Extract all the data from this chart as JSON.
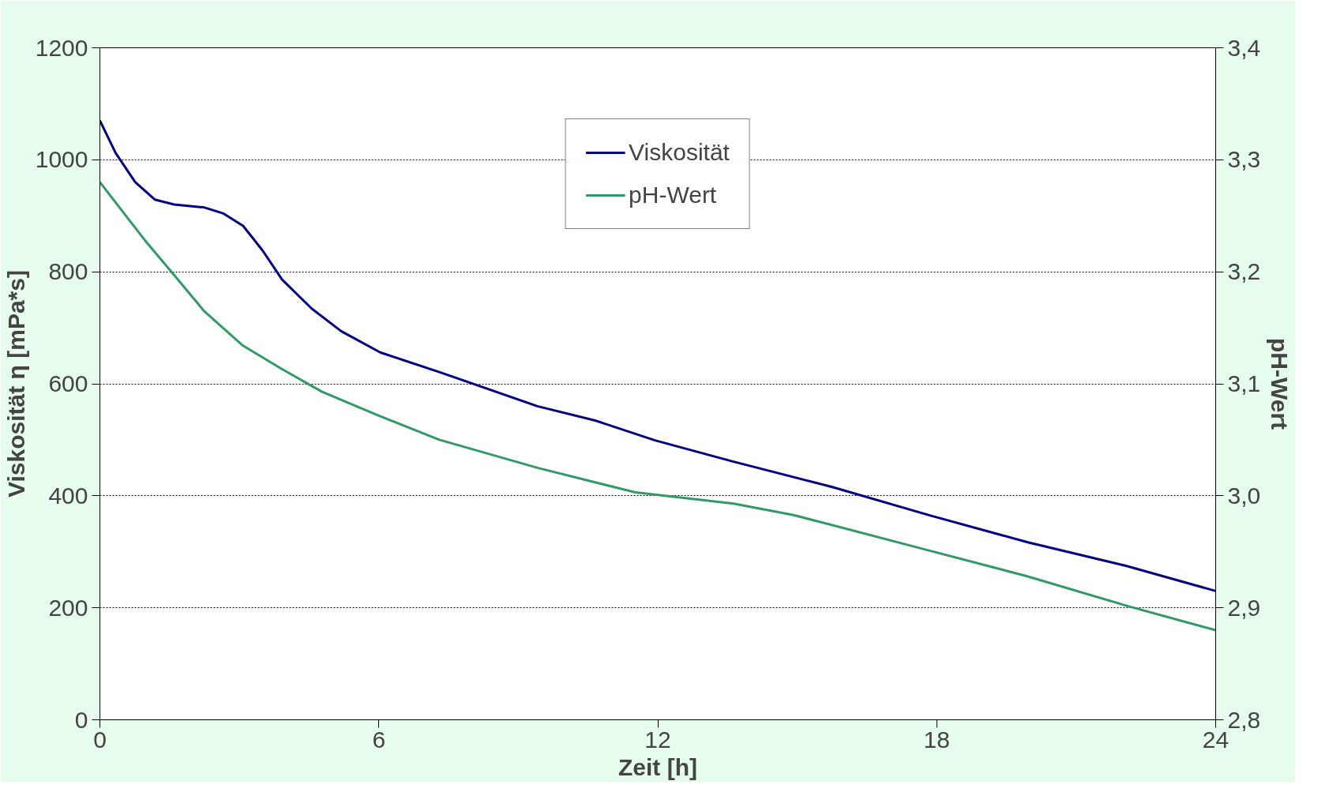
{
  "chart_data": {
    "type": "line",
    "xlabel": "Zeit [h]",
    "ylabel": "Viskosität η [mPa*s]",
    "y2label": "pH-Wert",
    "xlim": [
      0,
      24
    ],
    "xticks": [
      0,
      6,
      12,
      18,
      24
    ],
    "ylim": [
      0,
      1200
    ],
    "yticks": [
      0,
      200,
      400,
      600,
      800,
      1000,
      1200
    ],
    "y2lim": [
      2.8,
      3.4
    ],
    "y2ticks": [
      {
        "value": 2.8,
        "label": "2,8"
      },
      {
        "value": 2.9,
        "label": "2,9"
      },
      {
        "value": 3.0,
        "label": "3,0"
      },
      {
        "value": 3.1,
        "label": "3,1"
      },
      {
        "value": 3.2,
        "label": "3,2"
      },
      {
        "value": 3.3,
        "label": "3,3"
      },
      {
        "value": 3.4,
        "label": "3,4"
      }
    ],
    "grid": "y",
    "legend": "top",
    "line_style": "solid",
    "marker": "none",
    "series": [
      {
        "name": "Viskosität",
        "color": "#000080",
        "x": [
          0,
          0.34,
          0.76,
          1.18,
          1.6,
          2.24,
          2.66,
          3.08,
          3.5,
          3.92,
          4.56,
          5.19,
          6.03,
          7.3,
          9.41,
          10.67,
          11.94,
          13.63,
          15.74,
          17.85,
          19.96,
          22.07,
          24
        ],
        "values": [
          1070,
          1012,
          960,
          929,
          920,
          915,
          904,
          882,
          838,
          786,
          734,
          694,
          656,
          621,
          560,
          534,
          499,
          461,
          416,
          365,
          317,
          275,
          230
        ]
      },
      {
        "name": "pH-Wert",
        "color": "#339966",
        "axis": "y2",
        "x": [
          0,
          0.97,
          1.6,
          2.24,
          3.08,
          3.92,
          4.77,
          6.03,
          7.3,
          9.41,
          11.52,
          13.63,
          14.9,
          15.74,
          17.85,
          19.96,
          22.07,
          24
        ],
        "values": [
          3.28,
          3.228,
          3.197,
          3.165,
          3.134,
          3.113,
          3.093,
          3.071,
          3.05,
          3.025,
          3.003,
          2.993,
          2.983,
          2.974,
          2.951,
          2.928,
          2.902,
          2.88
        ]
      }
    ]
  }
}
